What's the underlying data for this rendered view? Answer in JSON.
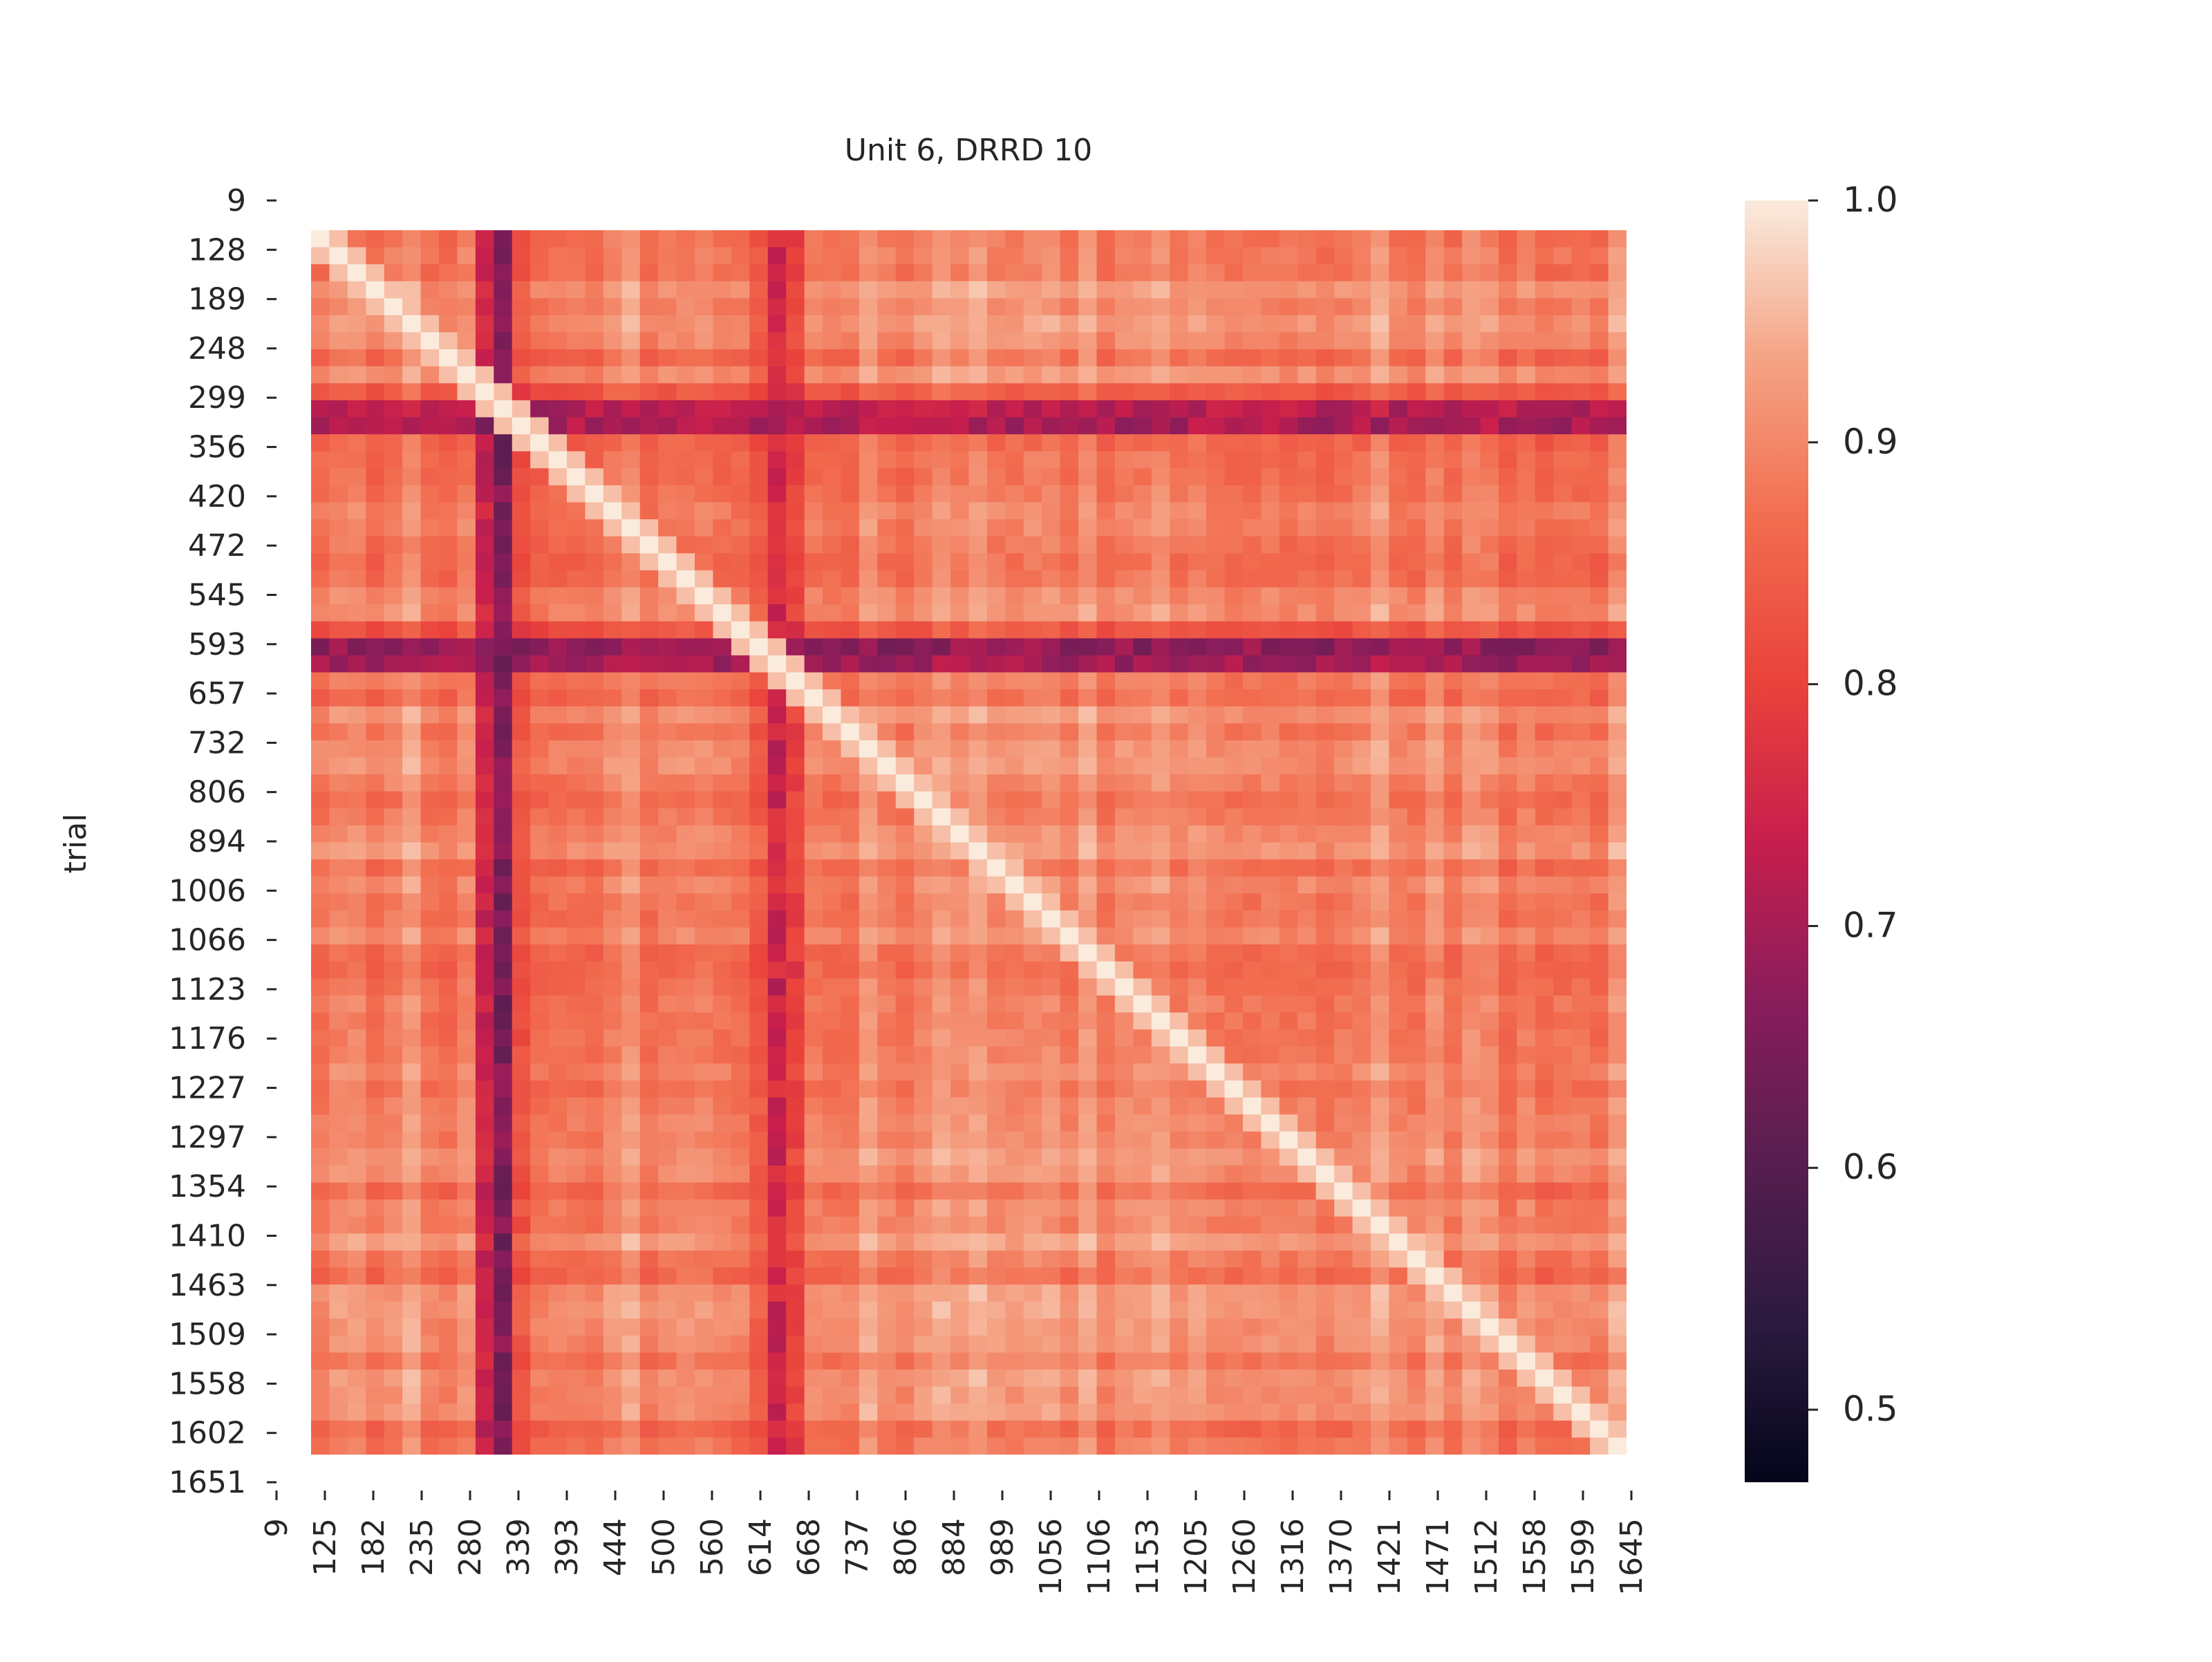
{
  "chart_data": {
    "type": "heatmap",
    "title": "Unit 6, DRRD 10",
    "xlabel": "",
    "ylabel": "trial",
    "x_tick_labels": [
      "9",
      "125",
      "182",
      "235",
      "280",
      "339",
      "393",
      "444",
      "500",
      "560",
      "614",
      "668",
      "737",
      "806",
      "884",
      "989",
      "1056",
      "1106",
      "1153",
      "1205",
      "1260",
      "1316",
      "1370",
      "1421",
      "1471",
      "1512",
      "1558",
      "1599",
      "1645"
    ],
    "y_tick_labels": [
      "9",
      "128",
      "189",
      "248",
      "299",
      "356",
      "420",
      "472",
      "545",
      "593",
      "657",
      "732",
      "806",
      "894",
      "1006",
      "1066",
      "1123",
      "1176",
      "1227",
      "1297",
      "1354",
      "1410",
      "1463",
      "1509",
      "1558",
      "1602",
      "1651"
    ],
    "colorbar": {
      "ticks": [
        0.5,
        0.6,
        0.7,
        0.8,
        0.9,
        1.0
      ],
      "tick_labels": [
        "0.5",
        "0.6",
        "0.7",
        "0.8",
        "0.9",
        "1.0"
      ],
      "vmin": 0.47,
      "vmax": 1.0,
      "colormap": "rocket"
    },
    "matrix_description_values": {
      "diagonal": 1.0,
      "background": 0.9,
      "dark_rows_and_columns": [
        {
          "axis": "row",
          "at_trial": 299,
          "min_value": 0.55
        },
        {
          "axis": "row",
          "at_trial": 593,
          "min_value": 0.52
        },
        {
          "axis": "column",
          "at_trial": 280,
          "min_value": 0.52
        },
        {
          "axis": "column",
          "at_trial": 614,
          "min_value": 0.62
        }
      ]
    },
    "grid": false
  }
}
